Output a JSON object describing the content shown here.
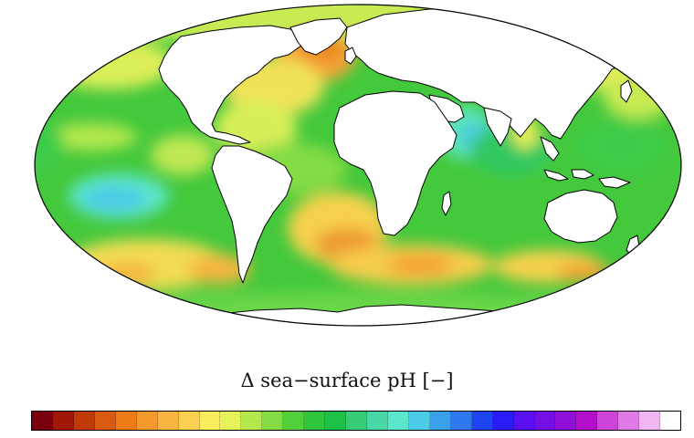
{
  "map": {
    "projection": "mollweide",
    "field": "Delta sea-surface pH",
    "land_color": "#ffffff",
    "coast_color": "#000000"
  },
  "colorbar": {
    "title": "Δ sea−surface pH [−]",
    "colors": [
      "#7a0010",
      "#a01808",
      "#c03a08",
      "#d85a10",
      "#ee7a18",
      "#f69a30",
      "#f8b440",
      "#fbcf50",
      "#fbec5c",
      "#e6f25a",
      "#b4e84e",
      "#84dc44",
      "#52d03c",
      "#2ec43c",
      "#1ec048",
      "#38cc78",
      "#48d8a8",
      "#5ce6cc",
      "#4ccce6",
      "#3aa0ec",
      "#2e78f0",
      "#1e44f4",
      "#2a1cf6",
      "#5a10f2",
      "#7410e4",
      "#9010d8",
      "#b410cc",
      "#ce44d8",
      "#e07ae6",
      "#efb6f2",
      "#ffffff"
    ]
  }
}
